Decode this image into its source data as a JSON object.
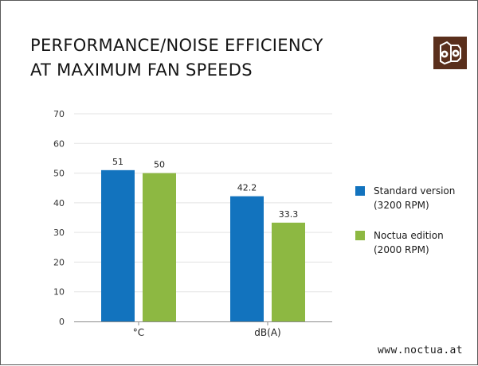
{
  "title_lines": [
    "PERFORMANCE/NOISE EFFICIENCY",
    "AT MAXIMUM FAN SPEEDS"
  ],
  "footer": "www.noctua.at",
  "logo_icon": "noctua-owl-logo",
  "legend": [
    {
      "line1": "Standard version",
      "line2": "(3200 RPM)",
      "color": "#1273be"
    },
    {
      "line1": "Noctua edition",
      "line2": "(2000 RPM)",
      "color": "#8db842"
    }
  ],
  "chart_data": {
    "type": "bar",
    "categories": [
      "°C",
      "dB(A)"
    ],
    "series": [
      {
        "name": "Standard version (3200 RPM)",
        "values": [
          51,
          42.2
        ],
        "labels": [
          "51",
          "42.2"
        ],
        "color": "#1273be"
      },
      {
        "name": "Noctua edition (2000 RPM)",
        "values": [
          50,
          33.3
        ],
        "labels": [
          "50",
          "33.3"
        ],
        "color": "#8db842"
      }
    ],
    "ylim": [
      0,
      70
    ],
    "yticks": [
      "0",
      "10",
      "20",
      "30",
      "40",
      "50",
      "60",
      "70"
    ],
    "grid": true,
    "legend_position": "right"
  }
}
